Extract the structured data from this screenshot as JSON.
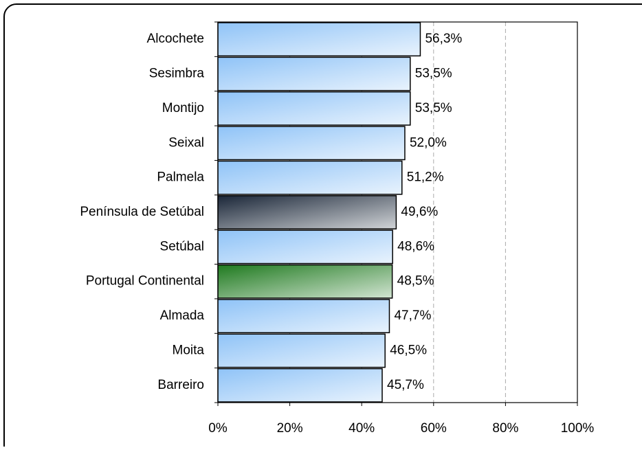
{
  "chart_data": {
    "type": "bar",
    "orientation": "horizontal",
    "categories": [
      "Alcochete",
      "Sesimbra",
      "Montijo",
      "Seixal",
      "Palmela",
      "Península de Setúbal",
      "Setúbal",
      "Portugal Continental",
      "Almada",
      "Moita",
      "Barreiro"
    ],
    "values": [
      56.3,
      53.5,
      53.5,
      52.0,
      51.2,
      49.6,
      48.6,
      48.5,
      47.7,
      46.5,
      45.7
    ],
    "value_labels": [
      "56,3%",
      "53,5%",
      "53,5%",
      "52,0%",
      "51,2%",
      "49,6%",
      "48,6%",
      "48,5%",
      "47,7%",
      "46,5%",
      "45,7%"
    ],
    "colors": [
      "#8fc3f7",
      "#8fc3f7",
      "#8fc3f7",
      "#8fc3f7",
      "#8fc3f7",
      "#1a2638",
      "#8fc3f7",
      "#1f7a1f",
      "#8fc3f7",
      "#8fc3f7",
      "#8fc3f7"
    ],
    "value_label_colors": [
      "#333399",
      "#333399",
      "#333399",
      "#333399",
      "#333399",
      "#333399",
      "#333399",
      "#008000",
      "#333399",
      "#333399",
      "#333399"
    ],
    "xlim": [
      0,
      100
    ],
    "xticks": [
      {
        "value": 0,
        "label": "0%"
      },
      {
        "value": 20,
        "label": "20%"
      },
      {
        "value": 40,
        "label": "40%"
      },
      {
        "value": 60,
        "label": "60%"
      },
      {
        "value": 80,
        "label": "80%"
      },
      {
        "value": 100,
        "label": "100%"
      }
    ],
    "grid": true
  }
}
